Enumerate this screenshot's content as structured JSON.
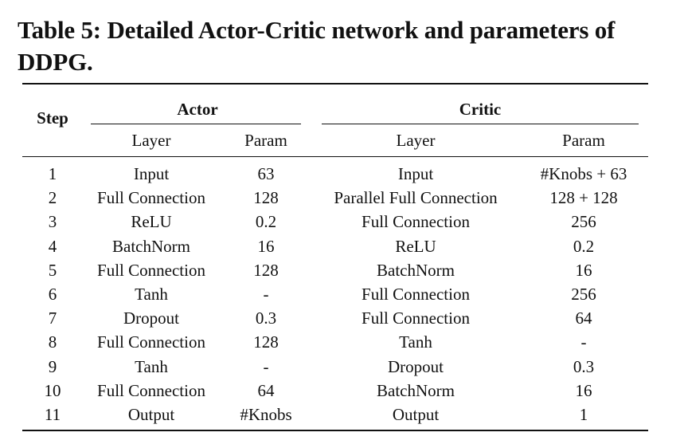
{
  "caption": "Table 5: Detailed Actor-Critic network and parameters of DDPG.",
  "headers": {
    "step": "Step",
    "actor": "Actor",
    "critic": "Critic",
    "actor_layer": "Layer",
    "actor_param": "Param",
    "critic_layer": "Layer",
    "critic_param": "Param"
  },
  "rows": [
    {
      "step": "1",
      "actor_layer": "Input",
      "actor_param": "63",
      "critic_layer": "Input",
      "critic_param": "#Knobs + 63"
    },
    {
      "step": "2",
      "actor_layer": "Full Connection",
      "actor_param": "128",
      "critic_layer": "Parallel Full Connection",
      "critic_param": "128 + 128"
    },
    {
      "step": "3",
      "actor_layer": "ReLU",
      "actor_param": "0.2",
      "critic_layer": "Full Connection",
      "critic_param": "256"
    },
    {
      "step": "4",
      "actor_layer": "BatchNorm",
      "actor_param": "16",
      "critic_layer": "ReLU",
      "critic_param": "0.2"
    },
    {
      "step": "5",
      "actor_layer": "Full Connection",
      "actor_param": "128",
      "critic_layer": "BatchNorm",
      "critic_param": "16"
    },
    {
      "step": "6",
      "actor_layer": "Tanh",
      "actor_param": "-",
      "critic_layer": "Full Connection",
      "critic_param": "256"
    },
    {
      "step": "7",
      "actor_layer": "Dropout",
      "actor_param": "0.3",
      "critic_layer": "Full Connection",
      "critic_param": "64"
    },
    {
      "step": "8",
      "actor_layer": "Full Connection",
      "actor_param": "128",
      "critic_layer": "Tanh",
      "critic_param": "-"
    },
    {
      "step": "9",
      "actor_layer": "Tanh",
      "actor_param": "-",
      "critic_layer": "Dropout",
      "critic_param": "0.3"
    },
    {
      "step": "10",
      "actor_layer": "Full Connection",
      "actor_param": "64",
      "critic_layer": "BatchNorm",
      "critic_param": "16"
    },
    {
      "step": "11",
      "actor_layer": "Output",
      "actor_param": "#Knobs",
      "critic_layer": "Output",
      "critic_param": "1"
    }
  ]
}
